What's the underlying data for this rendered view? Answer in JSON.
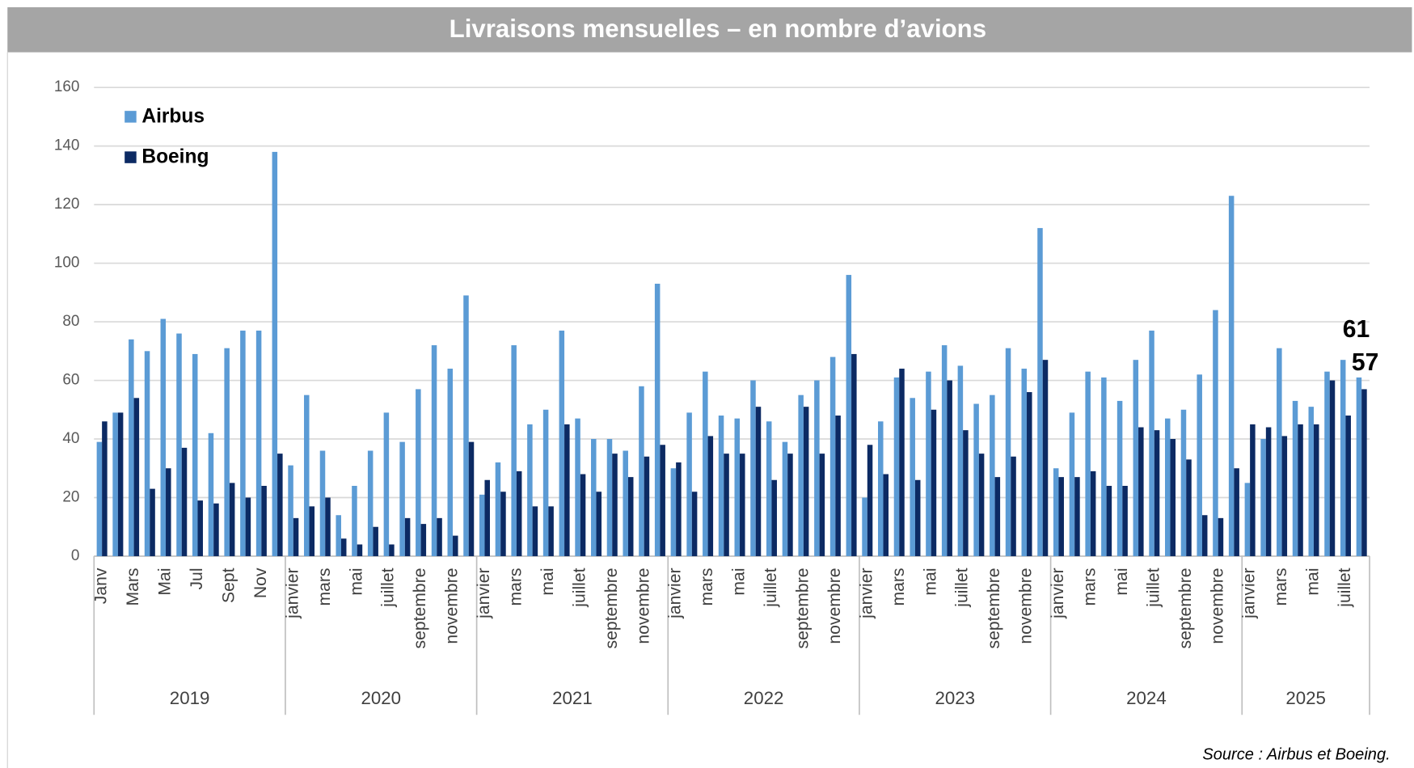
{
  "chart_data": {
    "type": "bar",
    "title": "Livraisons mensuelles – en nombre d’avions",
    "source": "Source : Airbus et Boeing.",
    "groups": [
      {
        "name": "2019",
        "categories": [
          "Janv",
          null,
          "Mars",
          null,
          "Mai",
          null,
          "Jul",
          null,
          "Sept",
          null,
          "Nov",
          null
        ]
      },
      {
        "name": "2020",
        "categories": [
          "janvier",
          null,
          "mars",
          null,
          "mai",
          null,
          "juillet",
          null,
          "septembre",
          null,
          "novembre",
          null
        ]
      },
      {
        "name": "2021",
        "categories": [
          "janvier",
          null,
          "mars",
          null,
          "mai",
          null,
          "juillet",
          null,
          "septembre",
          null,
          "novembre",
          null
        ]
      },
      {
        "name": "2022",
        "categories": [
          "janvier",
          null,
          "mars",
          null,
          "mai",
          null,
          "juillet",
          null,
          "septembre",
          null,
          "novembre",
          null
        ]
      },
      {
        "name": "2023",
        "categories": [
          "janvier",
          null,
          "mars",
          null,
          "mai",
          null,
          "juillet",
          null,
          "septembre",
          null,
          "novembre",
          null
        ]
      },
      {
        "name": "2024",
        "categories": [
          "janvier",
          null,
          "mars",
          null,
          "mai",
          null,
          "juillet",
          null,
          "septembre",
          null,
          "novembre",
          null
        ]
      },
      {
        "name": "2025",
        "categories": [
          "janvier",
          null,
          "mars",
          null,
          "mai",
          null,
          "juillet",
          null
        ]
      }
    ],
    "series": [
      {
        "name": "Airbus",
        "color": "#5b9bd5",
        "values": [
          39,
          49,
          74,
          70,
          81,
          76,
          69,
          42,
          71,
          77,
          77,
          138,
          31,
          55,
          36,
          14,
          24,
          36,
          49,
          39,
          57,
          72,
          64,
          89,
          21,
          32,
          72,
          45,
          50,
          77,
          47,
          40,
          40,
          36,
          58,
          93,
          30,
          49,
          63,
          48,
          47,
          60,
          46,
          39,
          55,
          60,
          68,
          96,
          20,
          46,
          61,
          54,
          63,
          72,
          65,
          52,
          55,
          71,
          64,
          112,
          30,
          49,
          63,
          61,
          53,
          67,
          77,
          47,
          50,
          62,
          84,
          123,
          25,
          40,
          71,
          53,
          51,
          63,
          67,
          61
        ]
      },
      {
        "name": "Boeing",
        "color": "#0c2a63",
        "values": [
          46,
          49,
          54,
          23,
          30,
          37,
          19,
          18,
          25,
          20,
          24,
          35,
          13,
          17,
          20,
          6,
          4,
          10,
          4,
          13,
          11,
          13,
          7,
          39,
          26,
          22,
          29,
          17,
          17,
          45,
          28,
          22,
          35,
          27,
          34,
          38,
          32,
          22,
          41,
          35,
          35,
          51,
          26,
          35,
          51,
          35,
          48,
          69,
          38,
          28,
          64,
          26,
          50,
          60,
          43,
          35,
          27,
          34,
          56,
          67,
          27,
          27,
          29,
          24,
          24,
          44,
          43,
          40,
          33,
          14,
          13,
          30,
          45,
          44,
          41,
          45,
          45,
          60,
          48,
          57
        ]
      }
    ],
    "ylim": [
      0,
      160
    ],
    "yticks": [
      0,
      20,
      40,
      60,
      80,
      100,
      120,
      140,
      160
    ],
    "grid": true,
    "legend": "top-left"
  }
}
